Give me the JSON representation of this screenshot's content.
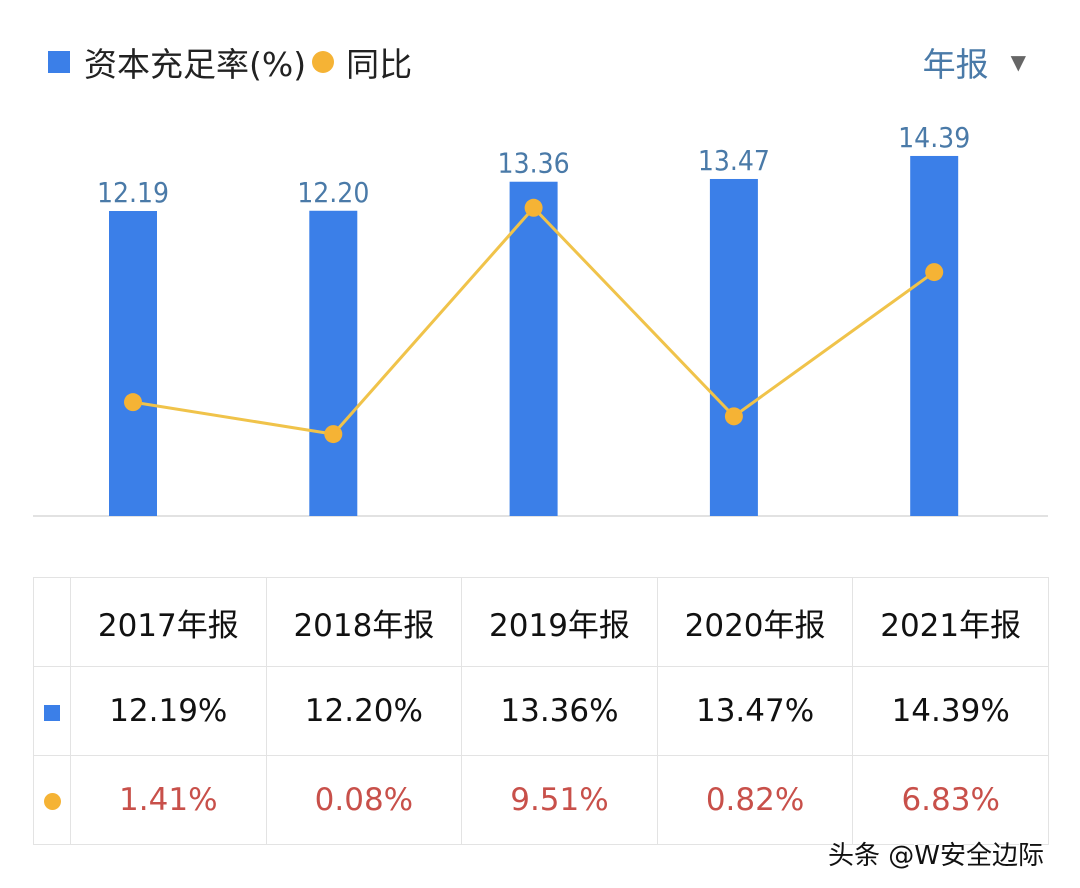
{
  "legend": {
    "series1": "资本充足率(%)",
    "series2": "同比"
  },
  "period_selector": {
    "label": "年报",
    "icon": "caret-down-icon"
  },
  "colors": {
    "bar": "#3b7fe8",
    "line": "#f0c34a",
    "dot": "#f5b335",
    "bar_label": "#4a7aa8",
    "yoy_text": "#c8504a"
  },
  "chart_data": {
    "type": "bar+line",
    "categories": [
      "2017年报",
      "2018年报",
      "2019年报",
      "2020年报",
      "2021年报"
    ],
    "series": [
      {
        "name": "资本充足率(%)",
        "type": "bar",
        "values": [
          12.19,
          12.2,
          13.36,
          13.47,
          14.39
        ],
        "labels": [
          "12.19",
          "12.20",
          "13.36",
          "13.47",
          "14.39"
        ]
      },
      {
        "name": "同比",
        "type": "line",
        "values": [
          1.41,
          0.08,
          9.51,
          0.82,
          6.83
        ]
      }
    ],
    "grid": false,
    "legend": "top-left"
  },
  "table": {
    "headers": [
      "2017年报",
      "2018年报",
      "2019年报",
      "2020年报",
      "2021年报"
    ],
    "ratio_row": [
      "12.19%",
      "12.20%",
      "13.36%",
      "13.47%",
      "14.39%"
    ],
    "yoy_row": [
      "1.41%",
      "0.08%",
      "9.51%",
      "0.82%",
      "6.83%"
    ]
  },
  "watermark": "头条 @W安全边际"
}
